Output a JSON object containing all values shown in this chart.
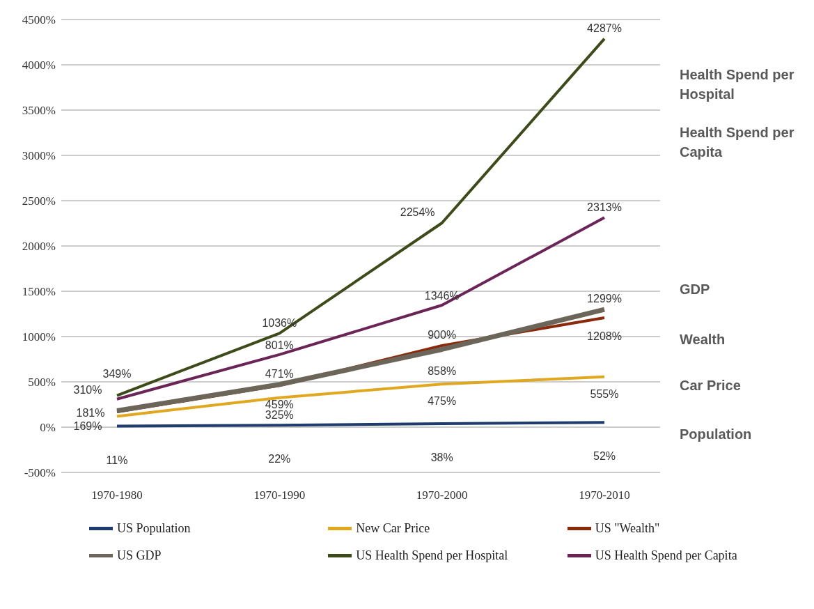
{
  "chart_data": {
    "type": "line",
    "categories": [
      "1970-1980",
      "1970-1990",
      "1970-2000",
      "1970-2010"
    ],
    "series": [
      {
        "name": "US Population",
        "color": "#1f3c6e",
        "values": [
          11,
          22,
          38,
          52
        ],
        "value_labels": [
          "11%",
          "22%",
          "38%",
          "52%"
        ]
      },
      {
        "name": "New Car Price",
        "color": "#e0a820",
        "values": [
          120,
          325,
          475,
          555
        ],
        "value_labels": [
          null,
          "325%",
          "475%",
          "555%"
        ]
      },
      {
        "name": "US \"Wealth\"",
        "color": "#8b2a0a",
        "values": [
          169,
          459,
          900,
          1208
        ],
        "value_labels": [
          "169%",
          "459%",
          "900%",
          "1208%"
        ]
      },
      {
        "name": "US GDP",
        "color": "#6b6659",
        "values": [
          181,
          471,
          858,
          1299
        ],
        "value_labels": [
          "181%",
          "471%",
          "858%",
          "1299%"
        ]
      },
      {
        "name": "US Health Spend per Hospital",
        "color": "#3d4a1a",
        "values": [
          349,
          1036,
          2254,
          4287
        ],
        "value_labels": [
          "349%",
          "1036%",
          "2254%",
          "4287%"
        ]
      },
      {
        "name": "US Health Spend per Capita",
        "color": "#6b2456",
        "values": [
          310,
          801,
          1346,
          2313
        ],
        "value_labels": [
          "310%",
          "801%",
          "1346%",
          "2313%"
        ]
      }
    ],
    "ylim": [
      -500,
      4500
    ],
    "yticks": [
      {
        "value": -500,
        "label": "-500%"
      },
      {
        "value": 0,
        "label": "0%"
      },
      {
        "value": 500,
        "label": "500%"
      },
      {
        "value": 1000,
        "label": "1000%"
      },
      {
        "value": 1500,
        "label": "1500%"
      },
      {
        "value": 2000,
        "label": "2000%"
      },
      {
        "value": 2500,
        "label": "2500%"
      },
      {
        "value": 3000,
        "label": "3000%"
      },
      {
        "value": 3500,
        "label": "3500%"
      },
      {
        "value": 4000,
        "label": "4000%"
      },
      {
        "value": 4500,
        "label": "4500%"
      }
    ],
    "grid": "y",
    "legend": "bottom",
    "marker": "none",
    "line_style": "solid",
    "annotations": [
      "Health Spend per Hospital",
      "Health Spend per Capita",
      "GDP",
      "Wealth",
      "Car Price",
      "Population"
    ]
  }
}
